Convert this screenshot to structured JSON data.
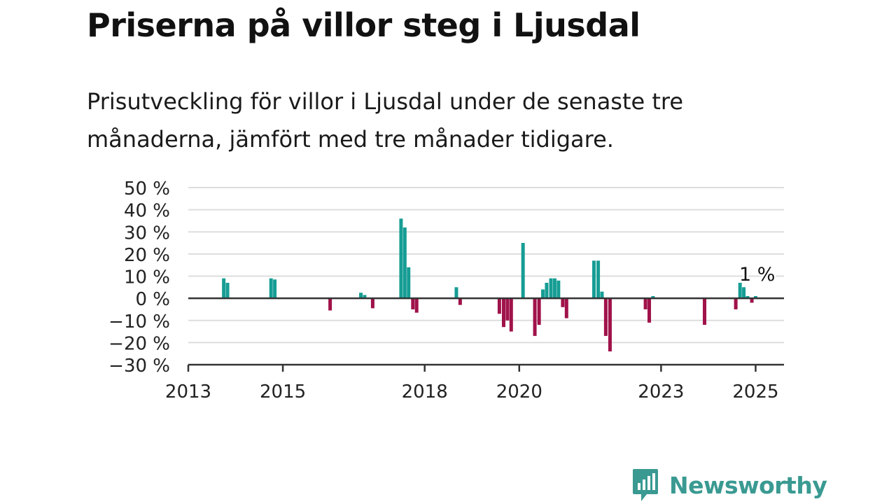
{
  "header": {
    "title": "Priserna på villor steg i Ljusdal",
    "subtitle": "Prisutveckling för villor i Ljusdal under de senaste tre månaderna, jämfört med tre månader tidigare."
  },
  "branding": {
    "name": "Newsworthy",
    "color": "#3a9a92"
  },
  "colors": {
    "positive": "#169d94",
    "negative": "#a0124a",
    "grid": "#dddddd",
    "axis": "#333333"
  },
  "chart_data": {
    "type": "bar",
    "title": "",
    "xlabel": "",
    "ylabel": "",
    "unit": "%",
    "ylim": [
      -30,
      50
    ],
    "yticks": [
      50,
      40,
      30,
      20,
      10,
      0,
      -10,
      -20,
      -30
    ],
    "ytick_labels": [
      "50 %",
      "40 %",
      "30 %",
      "20 %",
      "10 %",
      "0 %",
      "−10 %",
      "−20 %",
      "−30 %"
    ],
    "xlim": [
      2013,
      2025.6
    ],
    "xticks": [
      2013,
      2015,
      2018,
      2020,
      2023,
      2025
    ],
    "xtick_labels": [
      "2013",
      "2015",
      "2018",
      "2020",
      "2023",
      "2025"
    ],
    "grid": true,
    "annotation": {
      "text": "1 %",
      "x": 2025.0,
      "y": 1
    },
    "x": [
      2013.75,
      2013.83,
      2014.75,
      2014.83,
      2016.0,
      2016.65,
      2016.73,
      2016.9,
      2017.5,
      2017.58,
      2017.66,
      2017.75,
      2017.83,
      2018.67,
      2018.75,
      2019.58,
      2019.67,
      2019.75,
      2019.83,
      2020.08,
      2020.33,
      2020.42,
      2020.5,
      2020.58,
      2020.67,
      2020.75,
      2020.83,
      2020.92,
      2021.0,
      2021.58,
      2021.67,
      2021.75,
      2021.83,
      2021.92,
      2022.67,
      2022.75,
      2022.83,
      2023.92,
      2024.58,
      2024.67,
      2024.75,
      2024.83,
      2024.92,
      2025.0
    ],
    "values": [
      9,
      7,
      9,
      8.5,
      -5.5,
      2.5,
      1.5,
      -4.5,
      36,
      32,
      14,
      -5,
      -6.5,
      5,
      -3,
      -7,
      -13,
      -10,
      -15,
      25,
      -17,
      -12,
      4,
      7,
      9,
      9,
      8,
      -4,
      -9,
      17,
      17,
      3,
      -17,
      -24,
      -5,
      -11,
      1,
      -12,
      -5,
      7,
      5,
      1,
      -2,
      1
    ]
  }
}
